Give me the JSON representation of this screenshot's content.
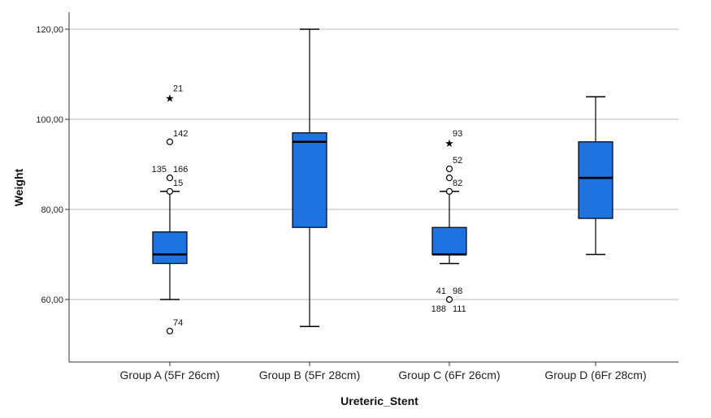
{
  "chart_data": {
    "type": "box",
    "title": "",
    "xlabel": "Ureteric_Stent",
    "ylabel": "Weight",
    "ylim": [
      45,
      124
    ],
    "yticks": [
      {
        "value": 60,
        "label": "60,00"
      },
      {
        "value": 80,
        "label": "80,00"
      },
      {
        "value": 100,
        "label": "100,00"
      },
      {
        "value": 120,
        "label": "120,00"
      }
    ],
    "grid": true,
    "box_color": "#1e73e0",
    "categories": [
      "Group A (5Fr 26cm)",
      "Group B (5Fr 28cm)",
      "Group C (6Fr 26cm)",
      "Group D (6Fr 28cm)"
    ],
    "boxes": [
      {
        "whisker_low": 60,
        "q1": 68,
        "median": 70,
        "q3": 75,
        "whisker_high": 84,
        "outliers": [
          {
            "value": 105,
            "kind": "extreme",
            "labels": [
              "21"
            ]
          },
          {
            "value": 95,
            "kind": "outlier",
            "labels": [
              "142"
            ]
          },
          {
            "value": 87,
            "kind": "outlier",
            "labels": [
              "135",
              "166"
            ]
          },
          {
            "value": 84,
            "kind": "outlier",
            "labels": [
              "15"
            ]
          },
          {
            "value": 53,
            "kind": "outlier",
            "labels": [
              "74"
            ]
          }
        ]
      },
      {
        "whisker_low": 54,
        "q1": 76,
        "median": 95,
        "q3": 97,
        "whisker_high": 120,
        "outliers": []
      },
      {
        "whisker_low": 68,
        "q1": 70,
        "median": 70,
        "q3": 76,
        "whisker_high": 84,
        "outliers": [
          {
            "value": 95,
            "kind": "extreme",
            "labels": [
              "93"
            ]
          },
          {
            "value": 89,
            "kind": "outlier",
            "labels": [
              "52"
            ]
          },
          {
            "value": 87,
            "kind": "outlier",
            "labels": []
          },
          {
            "value": 84,
            "kind": "outlier",
            "labels": [
              "82"
            ]
          },
          {
            "value": 60,
            "kind": "outlier",
            "labels": [
              "41",
              "98",
              "188",
              "111"
            ]
          }
        ]
      },
      {
        "whisker_low": 70,
        "q1": 78,
        "median": 87,
        "q3": 95,
        "whisker_high": 105,
        "outliers": []
      }
    ]
  }
}
